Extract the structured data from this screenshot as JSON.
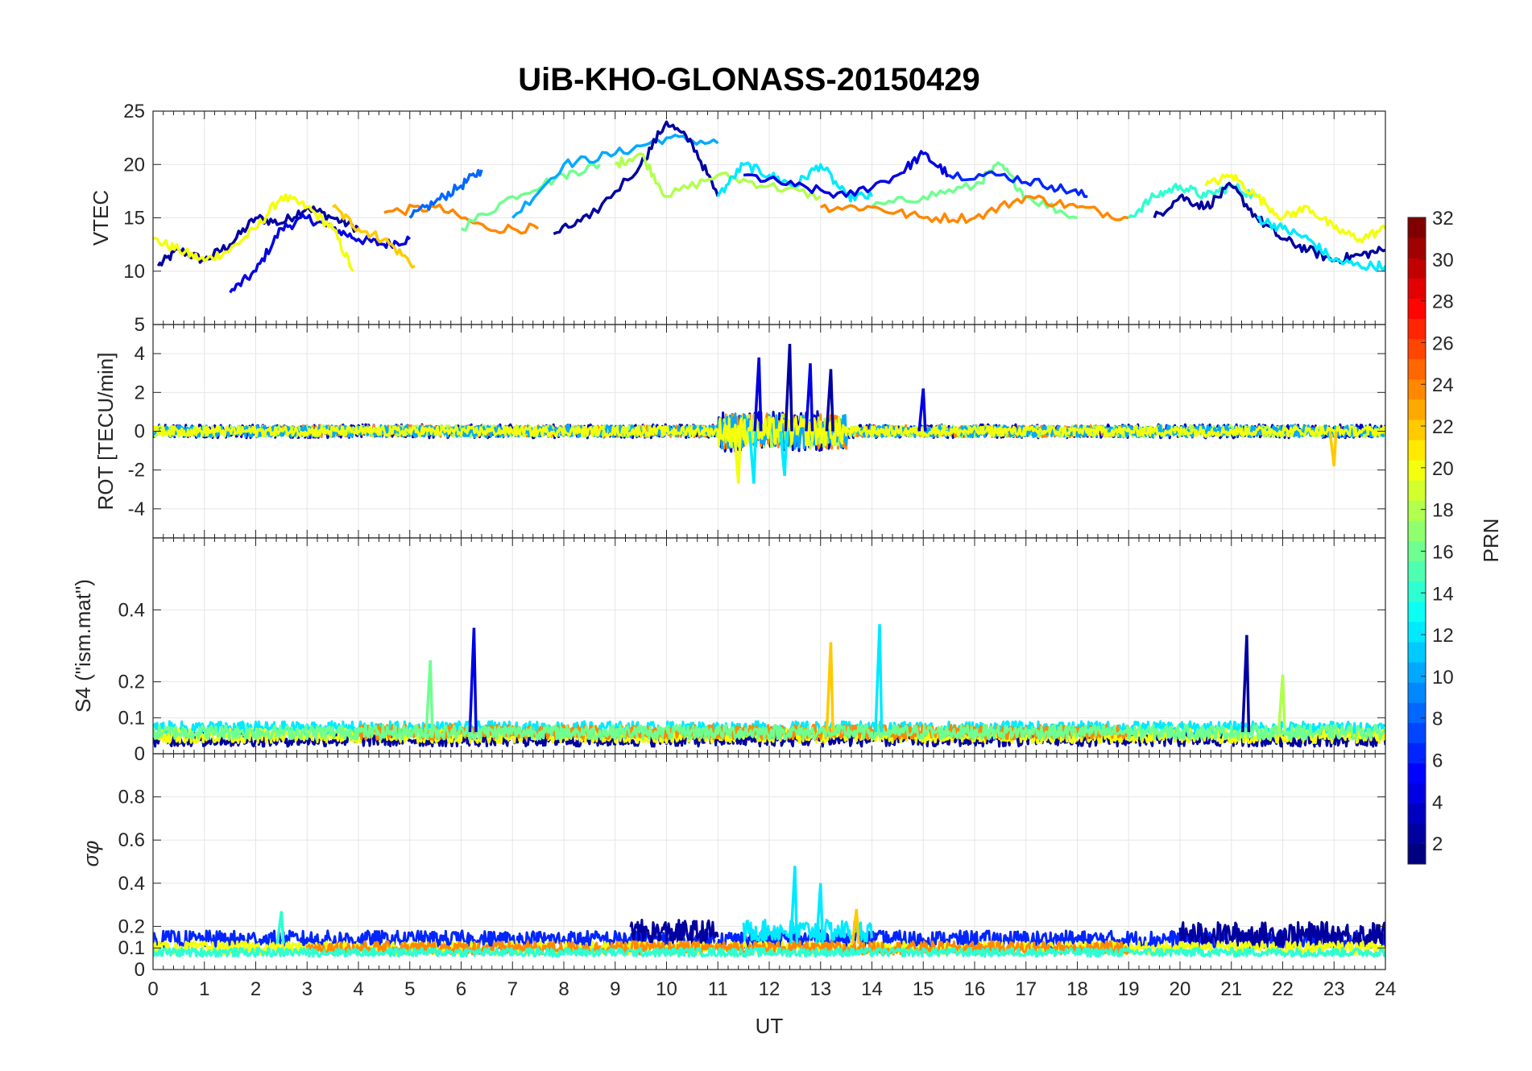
{
  "chart_data": {
    "title": "UiB-KHO-GLONASS-20150429",
    "type": "line",
    "xlabel": "UT",
    "xlim": [
      0,
      24
    ],
    "xticks": [
      "0",
      "1",
      "2",
      "3",
      "4",
      "5",
      "6",
      "7",
      "8",
      "9",
      "10",
      "11",
      "12",
      "13",
      "14",
      "15",
      "16",
      "17",
      "18",
      "19",
      "20",
      "21",
      "22",
      "23",
      "24"
    ],
    "panels": [
      {
        "id": "vtec",
        "ylabel": "VTEC",
        "ylim": [
          5,
          25
        ],
        "yticks": [
          "5",
          "10",
          "15",
          "20",
          "25"
        ],
        "grid": true,
        "series": [
          {
            "colorIndex": 2,
            "x": [
              0.1,
              0.5,
              1.0,
              1.5,
              2.0,
              2.5,
              3.0,
              3.5,
              4.0
            ],
            "y": [
              10.5,
              12,
              11,
              12.5,
              15,
              14.5,
              16,
              15,
              14
            ]
          },
          {
            "colorIndex": 4,
            "x": [
              1.5,
              2.0,
              2.5,
              3.0,
              3.5,
              4.0,
              4.5,
              5.0
            ],
            "y": [
              8,
              10,
              14,
              15,
              14,
              13,
              12.5,
              13
            ]
          },
          {
            "colorIndex": 20,
            "x": [
              0.0,
              0.5,
              1.0,
              1.5,
              2.0,
              2.5,
              3.0,
              3.5,
              3.9
            ],
            "y": [
              13,
              12,
              11,
              12,
              14,
              17,
              16,
              14,
              10
            ]
          },
          {
            "colorIndex": 22,
            "x": [
              3.5,
              4.0,
              4.5,
              5.1
            ],
            "y": [
              16,
              14,
              13,
              10.5
            ]
          },
          {
            "colorIndex": 24,
            "x": [
              4.5,
              5.5,
              6.5,
              7.5
            ],
            "y": [
              15.5,
              16,
              14,
              14
            ]
          },
          {
            "colorIndex": 8,
            "x": [
              5.0,
              5.5,
              6.0,
              6.4
            ],
            "y": [
              15,
              16.5,
              18,
              19.5
            ]
          },
          {
            "colorIndex": 16,
            "x": [
              6.0,
              7.0,
              8.0,
              8.7
            ],
            "y": [
              14,
              17,
              19,
              20
            ]
          },
          {
            "colorIndex": 10,
            "x": [
              7.0,
              8.0,
              9.0,
              10.0,
              11.0
            ],
            "y": [
              15,
              20,
              21,
              22.5,
              22
            ]
          },
          {
            "colorIndex": 2,
            "x": [
              7.8,
              8.5,
              9.5,
              10.0,
              10.5,
              11.0
            ],
            "y": [
              13.5,
              15,
              20,
              24,
              22,
              17
            ]
          },
          {
            "colorIndex": 18,
            "x": [
              9.0,
              9.5,
              10.0,
              11.0,
              12.0,
              13.0
            ],
            "y": [
              20,
              21,
              17,
              19,
              18,
              17
            ]
          },
          {
            "colorIndex": 12,
            "x": [
              11.0,
              11.5,
              12.0,
              12.5,
              13.0,
              13.5,
              14.0
            ],
            "y": [
              17,
              20,
              19,
              18,
              20,
              17,
              17
            ]
          },
          {
            "colorIndex": 4,
            "x": [
              11.5,
              12.5,
              13.5,
              14.5,
              15.0,
              15.5
            ],
            "y": [
              19,
              18,
              17,
              19,
              21,
              19
            ]
          },
          {
            "colorIndex": 16,
            "x": [
              14.0,
              15.0,
              16.0,
              16.5,
              17.0,
              18.0
            ],
            "y": [
              16,
              17,
              18,
              20,
              17,
              15
            ]
          },
          {
            "colorIndex": 24,
            "x": [
              13.0,
              14.0,
              15.0,
              16.0,
              17.0,
              18.0,
              19.0
            ],
            "y": [
              16,
              16,
              15,
              15,
              17,
              16,
              15
            ]
          },
          {
            "colorIndex": 6,
            "x": [
              15.5,
              16.5,
              17.5,
              18.2
            ],
            "y": [
              19,
              19,
              18,
              17
            ]
          },
          {
            "colorIndex": 14,
            "x": [
              19.0,
              19.5,
              20.0,
              20.5,
              21.0,
              21.5
            ],
            "y": [
              15,
              17,
              18,
              17,
              18,
              17
            ]
          },
          {
            "colorIndex": 2,
            "x": [
              19.5,
              20.0,
              20.5,
              21.0,
              21.5,
              22.0,
              22.5,
              23.0,
              23.5,
              24.0
            ],
            "y": [
              15,
              17,
              16,
              18,
              15,
              13,
              12,
              11,
              11.5,
              12
            ]
          },
          {
            "colorIndex": 12,
            "x": [
              21.5,
              22.0,
              22.5,
              23.0,
              23.5,
              24.0
            ],
            "y": [
              15,
              14,
              13,
              11,
              10.5,
              10.5
            ]
          },
          {
            "colorIndex": 20,
            "x": [
              20.5,
              21.0,
              21.5,
              22.0,
              22.5,
              23.0,
              23.5,
              24.0
            ],
            "y": [
              18,
              19,
              17,
              15,
              16,
              14,
              13,
              14
            ]
          }
        ]
      },
      {
        "id": "rot",
        "ylabel": "ROT [TECU/min]",
        "ylim": [
          -5.5,
          5.5
        ],
        "yticks": [
          "-4",
          "-2",
          "0",
          "2",
          "4"
        ],
        "ytickValues": [
          -4,
          -2,
          0,
          2,
          4
        ],
        "grid": true,
        "noise": [
          {
            "colorIndex": 3,
            "xmin": 0,
            "xmax": 24,
            "amp": 0.35
          },
          {
            "colorIndex": 24,
            "xmin": 2.5,
            "xmax": 19,
            "amp": 0.3
          },
          {
            "colorIndex": 18,
            "xmin": 0,
            "xmax": 24,
            "amp": 0.3
          },
          {
            "colorIndex": 10,
            "xmin": 0,
            "xmax": 24,
            "amp": 0.3
          },
          {
            "colorIndex": 20,
            "xmin": 0,
            "xmax": 24,
            "amp": 0.25
          }
        ],
        "spikes": [
          {
            "colorIndex": 4,
            "x": 11.8,
            "y": 3.8
          },
          {
            "colorIndex": 2,
            "x": 12.4,
            "y": 4.5
          },
          {
            "colorIndex": 4,
            "x": 12.8,
            "y": 3.5
          },
          {
            "colorIndex": 2,
            "x": 13.2,
            "y": 3.2
          },
          {
            "colorIndex": 20,
            "x": 11.4,
            "y": -2.7
          },
          {
            "colorIndex": 12,
            "x": 11.7,
            "y": -2.7
          },
          {
            "colorIndex": 12,
            "x": 12.3,
            "y": -2.3
          },
          {
            "colorIndex": 4,
            "x": 15.0,
            "y": 2.2
          },
          {
            "colorIndex": 22,
            "x": 23.0,
            "y": -1.8
          }
        ]
      },
      {
        "id": "s4",
        "ylabel": "S4 (\"ism.mat\")",
        "ylim": [
          0,
          0.6
        ],
        "yticks": [
          "0",
          "0.1",
          "0.2",
          "0.4"
        ],
        "ytickValues": [
          0,
          0.1,
          0.2,
          0.4
        ],
        "grid": true,
        "noise": [
          {
            "colorIndex": 2,
            "xmin": 0,
            "xmax": 24,
            "base": 0.04,
            "amp": 0.02
          },
          {
            "colorIndex": 12,
            "xmin": 0,
            "xmax": 24,
            "base": 0.07,
            "amp": 0.02
          },
          {
            "colorIndex": 20,
            "xmin": 0,
            "xmax": 24,
            "base": 0.05,
            "amp": 0.02
          },
          {
            "colorIndex": 24,
            "xmin": 4,
            "xmax": 19,
            "base": 0.06,
            "amp": 0.02
          },
          {
            "colorIndex": 16,
            "xmin": 0,
            "xmax": 24,
            "base": 0.06,
            "amp": 0.02
          }
        ],
        "spikes": [
          {
            "colorIndex": 16,
            "x": 5.4,
            "y": 0.26
          },
          {
            "colorIndex": 4,
            "x": 6.25,
            "y": 0.35
          },
          {
            "colorIndex": 22,
            "x": 13.2,
            "y": 0.31
          },
          {
            "colorIndex": 12,
            "x": 14.15,
            "y": 0.36
          },
          {
            "colorIndex": 2,
            "x": 21.3,
            "y": 0.33
          },
          {
            "colorIndex": 18,
            "x": 22.0,
            "y": 0.22
          }
        ]
      },
      {
        "id": "sigma",
        "ylabel": "σφ",
        "ylim": [
          0,
          1
        ],
        "yticks": [
          "0",
          "0.1",
          "0.2",
          "0.4",
          "0.6",
          "0.8"
        ],
        "ytickValues": [
          0,
          0.1,
          0.2,
          0.4,
          0.6,
          0.8
        ],
        "grid": true,
        "noise": [
          {
            "colorIndex": 6,
            "xmin": 0,
            "xmax": 24,
            "base": 0.14,
            "amp": 0.04
          },
          {
            "colorIndex": 2,
            "xmin": 9.3,
            "xmax": 11,
            "base": 0.17,
            "amp": 0.06
          },
          {
            "colorIndex": 2,
            "xmin": 20,
            "xmax": 24,
            "base": 0.16,
            "amp": 0.06
          },
          {
            "colorIndex": 12,
            "xmin": 11.5,
            "xmax": 14,
            "base": 0.18,
            "amp": 0.05
          },
          {
            "colorIndex": 20,
            "xmin": 0,
            "xmax": 24,
            "base": 0.1,
            "amp": 0.03
          },
          {
            "colorIndex": 24,
            "xmin": 3,
            "xmax": 19,
            "base": 0.1,
            "amp": 0.03
          },
          {
            "colorIndex": 14,
            "xmin": 0,
            "xmax": 24,
            "base": 0.08,
            "amp": 0.02
          }
        ],
        "spikes": [
          {
            "colorIndex": 12,
            "x": 12.5,
            "y": 0.48
          },
          {
            "colorIndex": 12,
            "x": 13.0,
            "y": 0.4
          },
          {
            "colorIndex": 22,
            "x": 13.7,
            "y": 0.28
          },
          {
            "colorIndex": 14,
            "x": 2.5,
            "y": 0.27
          }
        ]
      }
    ],
    "colorbar": {
      "label": "PRN",
      "lim": [
        1,
        32
      ],
      "ticks": [
        "2",
        "4",
        "6",
        "8",
        "10",
        "12",
        "14",
        "16",
        "18",
        "20",
        "22",
        "24",
        "26",
        "28",
        "30",
        "32"
      ],
      "tickValues": [
        2,
        4,
        6,
        8,
        10,
        12,
        14,
        16,
        18,
        20,
        22,
        24,
        26,
        28,
        30,
        32
      ],
      "colormap": "jet"
    }
  }
}
